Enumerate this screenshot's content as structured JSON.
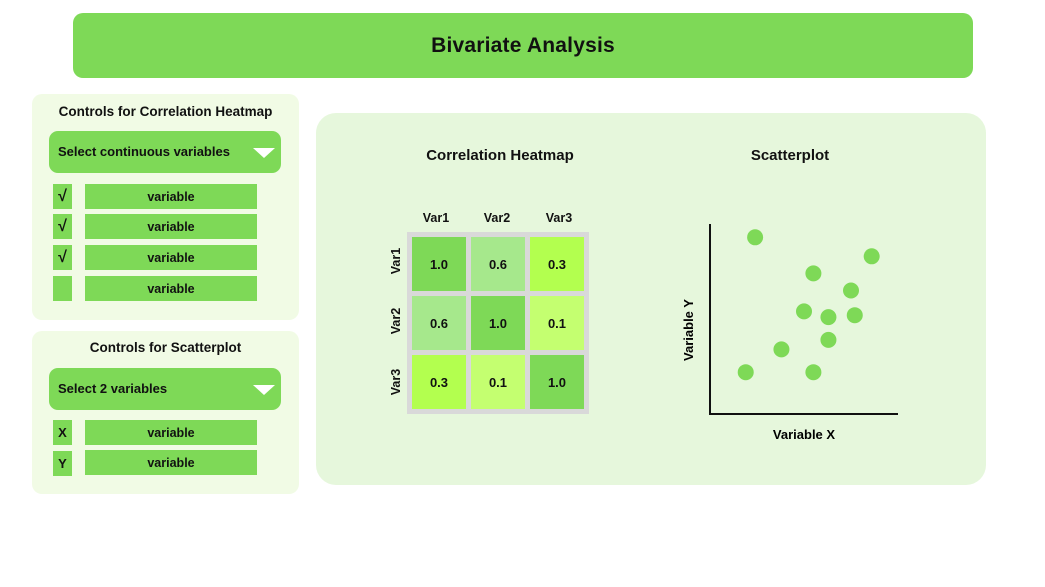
{
  "header": {
    "title": "Bivariate Analysis"
  },
  "heatmap_controls": {
    "title": "Controls for Correlation Heatmap",
    "dropdown_label": "Select continuous variables",
    "items": [
      {
        "checked": true,
        "mark": "√",
        "label": "variable"
      },
      {
        "checked": true,
        "mark": "√",
        "label": "variable"
      },
      {
        "checked": true,
        "mark": "√",
        "label": "variable"
      },
      {
        "checked": false,
        "mark": "",
        "label": "variable"
      }
    ]
  },
  "scatter_controls": {
    "title": "Controls for Scatterplot",
    "dropdown_label": "Select 2 variables",
    "items": [
      {
        "axis": "X",
        "label": "variable"
      },
      {
        "axis": "Y",
        "label": "variable"
      }
    ]
  },
  "heatmap": {
    "title": "Correlation Heatmap",
    "variables": [
      "Var1",
      "Var2",
      "Var3"
    ],
    "values": [
      [
        "1.0",
        "0.6",
        "0.3"
      ],
      [
        "0.6",
        "1.0",
        "0.1"
      ],
      [
        "0.3",
        "0.1",
        "1.0"
      ]
    ],
    "colors": {
      "1.0": "#7ed957",
      "0.6": "#a6e88c",
      "0.3": "#b3ff4f",
      "0.1": "#c4ff70"
    }
  },
  "scatterplot": {
    "title": "Scatterplot",
    "xlabel": "Variable X",
    "ylabel": "Variable Y",
    "point_color": "#7ed957",
    "chart_data": {
      "type": "scatter",
      "xlim": [
        0,
        10
      ],
      "ylim": [
        0,
        10
      ],
      "points": [
        {
          "x": 2.4,
          "y": 9.3
        },
        {
          "x": 8.6,
          "y": 8.3
        },
        {
          "x": 5.5,
          "y": 7.4
        },
        {
          "x": 7.5,
          "y": 6.5
        },
        {
          "x": 5.0,
          "y": 5.4
        },
        {
          "x": 6.3,
          "y": 5.1
        },
        {
          "x": 7.7,
          "y": 5.2
        },
        {
          "x": 6.3,
          "y": 3.9
        },
        {
          "x": 3.8,
          "y": 3.4
        },
        {
          "x": 1.9,
          "y": 2.2
        },
        {
          "x": 5.5,
          "y": 2.2
        }
      ]
    }
  }
}
